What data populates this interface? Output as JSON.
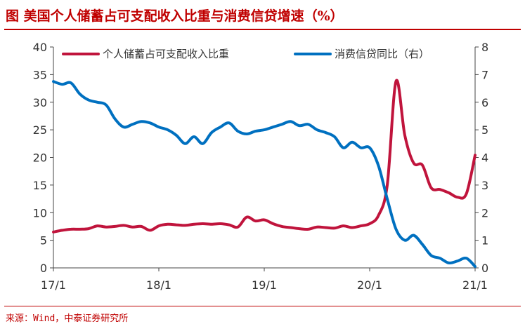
{
  "title": "图  美国个人储蓄占可支配收入比重与消费信贷增速（%）",
  "source": "来源：Wind，中泰证券研究所",
  "colors": {
    "title": "#c00000",
    "saving": "#c0143c",
    "credit": "#0070c0"
  },
  "chart_data": {
    "type": "line",
    "title": "图  美国个人储蓄占可支配收入比重与消费信贷增速（%）",
    "x_tick_labels": [
      "17/1",
      "18/1",
      "19/1",
      "20/1",
      "21/1"
    ],
    "x_tick_dates": [
      "2017-01",
      "2018-01",
      "2019-01",
      "2020-01",
      "2021-01"
    ],
    "y_left": {
      "ylim": [
        0,
        40
      ],
      "ticks": [
        "0",
        "5",
        "10",
        "15",
        "20",
        "25",
        "30",
        "35",
        "40"
      ]
    },
    "y_right": {
      "ylim": [
        0,
        8
      ],
      "ticks": [
        "0",
        "1",
        "2",
        "3",
        "4",
        "5",
        "6",
        "7",
        "8"
      ]
    },
    "legend": "top",
    "grid": false,
    "series": [
      {
        "name": "个人储蓄占可支配收入比重",
        "axis": "left",
        "color": "#c0143c",
        "points": [
          [
            "2017-01",
            6.5
          ],
          [
            "2017-02",
            6.8
          ],
          [
            "2017-03",
            7.0
          ],
          [
            "2017-04",
            7.0
          ],
          [
            "2017-05",
            7.1
          ],
          [
            "2017-06",
            7.6
          ],
          [
            "2017-07",
            7.4
          ],
          [
            "2017-08",
            7.5
          ],
          [
            "2017-09",
            7.7
          ],
          [
            "2017-10",
            7.4
          ],
          [
            "2017-11",
            7.5
          ],
          [
            "2017-12",
            6.8
          ],
          [
            "2018-01",
            7.6
          ],
          [
            "2018-02",
            7.9
          ],
          [
            "2018-03",
            7.8
          ],
          [
            "2018-04",
            7.7
          ],
          [
            "2018-05",
            7.9
          ],
          [
            "2018-06",
            8.0
          ],
          [
            "2018-07",
            7.9
          ],
          [
            "2018-08",
            8.0
          ],
          [
            "2018-09",
            7.8
          ],
          [
            "2018-10",
            7.4
          ],
          [
            "2018-11",
            9.2
          ],
          [
            "2018-12",
            8.5
          ],
          [
            "2019-01",
            8.7
          ],
          [
            "2019-02",
            8.0
          ],
          [
            "2019-03",
            7.5
          ],
          [
            "2019-04",
            7.3
          ],
          [
            "2019-05",
            7.1
          ],
          [
            "2019-06",
            7.0
          ],
          [
            "2019-07",
            7.4
          ],
          [
            "2019-08",
            7.3
          ],
          [
            "2019-09",
            7.2
          ],
          [
            "2019-10",
            7.6
          ],
          [
            "2019-11",
            7.3
          ],
          [
            "2019-12",
            7.6
          ],
          [
            "2020-01",
            8.0
          ],
          [
            "2020-02",
            9.5
          ],
          [
            "2020-03",
            15.0
          ],
          [
            "2020-04",
            33.8
          ],
          [
            "2020-05",
            24.0
          ],
          [
            "2020-06",
            19.0
          ],
          [
            "2020-07",
            18.6
          ],
          [
            "2020-08",
            14.5
          ],
          [
            "2020-09",
            14.2
          ],
          [
            "2020-10",
            13.6
          ],
          [
            "2020-11",
            12.8
          ],
          [
            "2020-12",
            13.4
          ],
          [
            "2021-01",
            20.4
          ]
        ]
      },
      {
        "name": "消费信贷同比（右）",
        "axis": "right",
        "color": "#0070c0",
        "points": [
          [
            "2017-01",
            6.75
          ],
          [
            "2017-02",
            6.65
          ],
          [
            "2017-03",
            6.7
          ],
          [
            "2017-04",
            6.3
          ],
          [
            "2017-05",
            6.08
          ],
          [
            "2017-06",
            6.0
          ],
          [
            "2017-07",
            5.9
          ],
          [
            "2017-08",
            5.4
          ],
          [
            "2017-09",
            5.1
          ],
          [
            "2017-10",
            5.2
          ],
          [
            "2017-11",
            5.3
          ],
          [
            "2017-12",
            5.25
          ],
          [
            "2018-01",
            5.1
          ],
          [
            "2018-02",
            5.0
          ],
          [
            "2018-03",
            4.8
          ],
          [
            "2018-04",
            4.5
          ],
          [
            "2018-05",
            4.75
          ],
          [
            "2018-06",
            4.5
          ],
          [
            "2018-07",
            4.9
          ],
          [
            "2018-08",
            5.1
          ],
          [
            "2018-09",
            5.25
          ],
          [
            "2018-10",
            4.95
          ],
          [
            "2018-11",
            4.85
          ],
          [
            "2018-12",
            4.95
          ],
          [
            "2019-01",
            5.0
          ],
          [
            "2019-02",
            5.1
          ],
          [
            "2019-03",
            5.2
          ],
          [
            "2019-04",
            5.3
          ],
          [
            "2019-05",
            5.15
          ],
          [
            "2019-06",
            5.2
          ],
          [
            "2019-07",
            5.0
          ],
          [
            "2019-08",
            4.9
          ],
          [
            "2019-09",
            4.75
          ],
          [
            "2019-10",
            4.35
          ],
          [
            "2019-11",
            4.55
          ],
          [
            "2019-12",
            4.35
          ],
          [
            "2020-01",
            4.35
          ],
          [
            "2020-02",
            3.7
          ],
          [
            "2020-03",
            2.5
          ],
          [
            "2020-04",
            1.4
          ],
          [
            "2020-05",
            1.0
          ],
          [
            "2020-06",
            1.18
          ],
          [
            "2020-07",
            0.85
          ],
          [
            "2020-08",
            0.45
          ],
          [
            "2020-09",
            0.35
          ],
          [
            "2020-10",
            0.18
          ],
          [
            "2020-11",
            0.25
          ],
          [
            "2020-12",
            0.35
          ],
          [
            "2021-01",
            0.05
          ]
        ]
      }
    ]
  }
}
